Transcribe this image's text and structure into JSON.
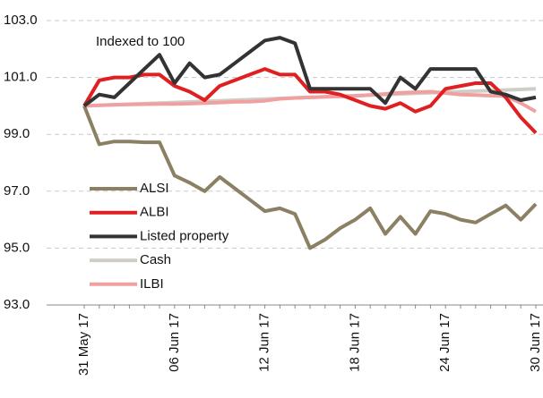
{
  "chart_data": {
    "type": "line",
    "annotation": "Indexed to 100",
    "categories": [
      "31 May 17",
      null,
      null,
      null,
      null,
      null,
      "06 Jun 17",
      null,
      null,
      null,
      null,
      null,
      "12 Jun 17",
      null,
      null,
      null,
      null,
      null,
      "18 Jun 17",
      null,
      null,
      null,
      null,
      null,
      "24 Jun 17",
      null,
      null,
      null,
      null,
      null,
      "30 Jun 17"
    ],
    "series": [
      {
        "name": "ALSI",
        "color": "#8b8063",
        "values": [
          100.0,
          98.65,
          98.75,
          98.75,
          98.72,
          98.72,
          97.55,
          97.3,
          97.0,
          97.5,
          97.1,
          96.7,
          96.3,
          96.4,
          96.2,
          95.0,
          95.3,
          95.7,
          96.0,
          96.4,
          95.5,
          96.1,
          95.5,
          96.3,
          96.2,
          96.0,
          95.9,
          96.2,
          96.5,
          96.0,
          96.55
        ]
      },
      {
        "name": "ALBI",
        "color": "#e02020",
        "values": [
          100.0,
          100.9,
          101.0,
          101.0,
          101.1,
          101.1,
          100.7,
          100.5,
          100.2,
          100.7,
          100.9,
          101.1,
          101.3,
          101.1,
          101.1,
          100.5,
          100.5,
          100.4,
          100.2,
          100.0,
          99.9,
          100.1,
          99.8,
          100.0,
          100.6,
          100.7,
          100.8,
          100.8,
          100.3,
          99.6,
          99.05
        ]
      },
      {
        "name": "Listed property",
        "color": "#333333",
        "values": [
          100.0,
          100.4,
          100.3,
          100.8,
          101.3,
          101.8,
          100.8,
          101.5,
          101.0,
          101.1,
          101.5,
          101.9,
          102.3,
          102.4,
          102.2,
          100.6,
          100.6,
          100.6,
          100.6,
          100.6,
          100.1,
          101.0,
          100.6,
          101.3,
          101.3,
          101.3,
          101.3,
          100.5,
          100.4,
          100.2,
          100.3
        ]
      },
      {
        "name": "Cash",
        "color": "#d0cdc6",
        "values": [
          100.0,
          100.02,
          100.04,
          100.06,
          100.08,
          100.1,
          100.12,
          100.14,
          100.16,
          100.18,
          100.2,
          100.22,
          100.24,
          100.26,
          100.28,
          100.3,
          100.32,
          100.34,
          100.36,
          100.38,
          100.4,
          100.42,
          100.44,
          100.46,
          100.48,
          100.5,
          100.52,
          100.54,
          100.56,
          100.58,
          100.6
        ]
      },
      {
        "name": "ILBI",
        "color": "#f0a0a0",
        "values": [
          100.0,
          100.02,
          100.04,
          100.05,
          100.06,
          100.07,
          100.07,
          100.08,
          100.1,
          100.12,
          100.14,
          100.15,
          100.18,
          100.25,
          100.28,
          100.3,
          100.32,
          100.33,
          100.35,
          100.38,
          100.42,
          100.46,
          100.48,
          100.5,
          100.45,
          100.4,
          100.38,
          100.36,
          100.35,
          100.1,
          99.8
        ]
      }
    ],
    "ylim": [
      93,
      103
    ],
    "yticks": [
      {
        "value": 93,
        "label": "93.0"
      },
      {
        "value": 95,
        "label": "95.0"
      },
      {
        "value": 97,
        "label": "97.0"
      },
      {
        "value": 99,
        "label": "99.0"
      },
      {
        "value": 101,
        "label": "101.0"
      },
      {
        "value": 103,
        "label": "103.0"
      }
    ],
    "grid": true
  }
}
